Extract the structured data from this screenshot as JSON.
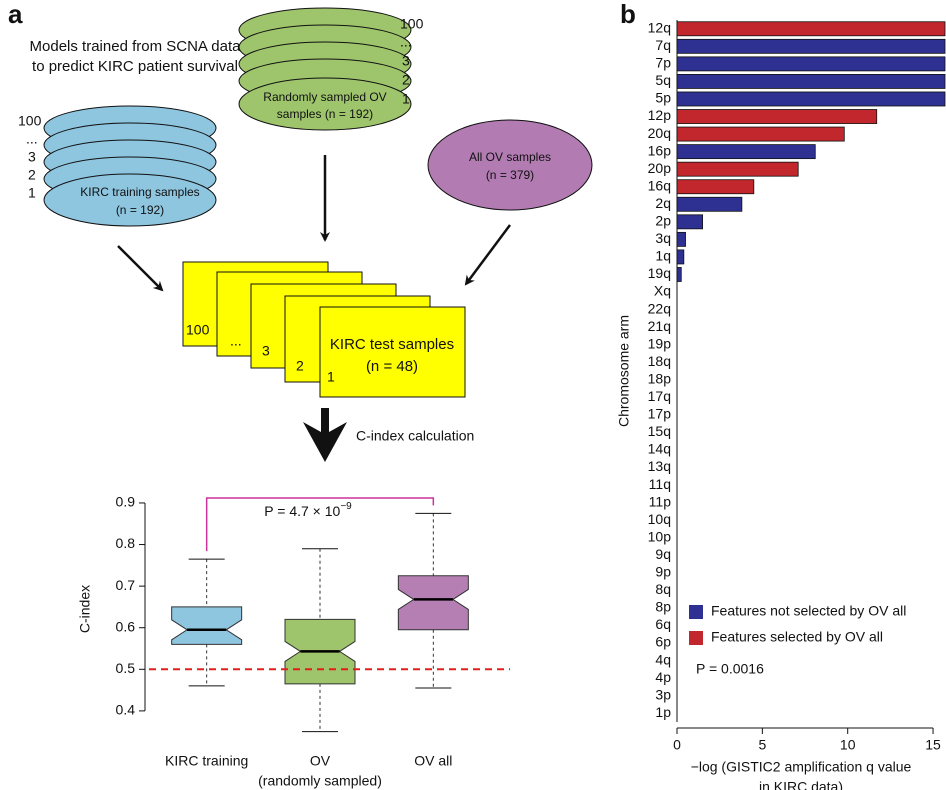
{
  "panel_labels": [
    "a",
    "b"
  ],
  "diagram": {
    "intro": [
      "Models trained from SCNA data",
      "to predict KIRC patient survival"
    ],
    "ov_stack": {
      "numbers": [
        "100",
        "...",
        "3",
        "2",
        "1"
      ],
      "label": [
        "Randomly sampled OV",
        "samples (n = 192)"
      ]
    },
    "kirc_stack": {
      "numbers": [
        "100",
        "...",
        "3",
        "2",
        "1"
      ],
      "label": [
        "KIRC training samples",
        "(n = 192)"
      ]
    },
    "ov_all": {
      "label": [
        "All OV samples",
        "(n = 379)"
      ]
    },
    "test_cards": {
      "numbers": [
        "100",
        "...",
        "3",
        "2",
        "1"
      ],
      "label": [
        "KIRC test samples",
        "(n = 48)"
      ]
    },
    "step": "C-index calculation"
  },
  "chart_data": [
    {
      "type": "boxplot",
      "ylabel": "C-index",
      "categories": [
        "KIRC training",
        "OV",
        "OV all"
      ],
      "category_sublabels": [
        null,
        "(randomly sampled)",
        null
      ],
      "colors": [
        "#8ec5df",
        "#9ec46c",
        "#b57fb4"
      ],
      "min": [
        0.46,
        0.35,
        0.455
      ],
      "q1": [
        0.56,
        0.465,
        0.595
      ],
      "median": [
        0.595,
        0.543,
        0.668
      ],
      "q3": [
        0.65,
        0.62,
        0.725
      ],
      "max": [
        0.765,
        0.79,
        0.875
      ],
      "ylim": [
        0.33,
        0.96
      ],
      "yticks": [
        0.4,
        0.5,
        0.6,
        0.7,
        0.8,
        0.9
      ],
      "reference_line": 0.5,
      "reference_color": "#e0201b",
      "bracket_color": "#cc3399",
      "annotation": "P = 4.7 × 10",
      "annotation_superscript": "−9"
    },
    {
      "type": "barh",
      "ylabel": "Chromosome arm",
      "xlabel": [
        "−log (GISTIC2 amplification q value",
        "in KIRC data)"
      ],
      "categories": [
        "12q",
        "7q",
        "7p",
        "5q",
        "5p",
        "12p",
        "20q",
        "16p",
        "20p",
        "16q",
        "2q",
        "2p",
        "3q",
        "1q",
        "19q",
        "Xq",
        "22q",
        "21q",
        "19p",
        "18q",
        "18p",
        "17q",
        "17p",
        "15q",
        "14q",
        "13q",
        "11q",
        "11p",
        "10q",
        "10p",
        "9q",
        "9p",
        "8q",
        "8p",
        "6q",
        "6p",
        "4q",
        "4p",
        "3p",
        "1p"
      ],
      "series": [
        {
          "name": "Features not selected by OV all",
          "color": "#2e3192",
          "values": [
            null,
            15.7,
            15.7,
            15.7,
            15.7,
            null,
            null,
            8.1,
            null,
            null,
            3.8,
            1.5,
            0.5,
            0.4,
            0.25,
            0,
            0,
            0,
            0,
            0,
            0,
            0,
            0,
            0,
            0,
            0,
            0,
            0,
            0,
            0,
            0,
            0,
            0,
            0,
            0,
            0,
            0,
            0,
            0,
            0
          ]
        },
        {
          "name": "Features selected by OV all",
          "color": "#c1272d",
          "values": [
            15.7,
            null,
            null,
            null,
            null,
            11.7,
            9.8,
            null,
            7.1,
            4.5,
            null,
            null,
            null,
            null,
            null,
            null,
            null,
            null,
            null,
            null,
            null,
            null,
            null,
            null,
            null,
            null,
            null,
            null,
            null,
            null,
            null,
            null,
            null,
            null,
            null,
            null,
            null,
            null,
            null,
            null
          ]
        }
      ],
      "xlim": [
        0,
        15.7
      ],
      "xticks": [
        0,
        5,
        10,
        15
      ],
      "legend": "lower left",
      "annotation": "P = 0.0016"
    }
  ]
}
